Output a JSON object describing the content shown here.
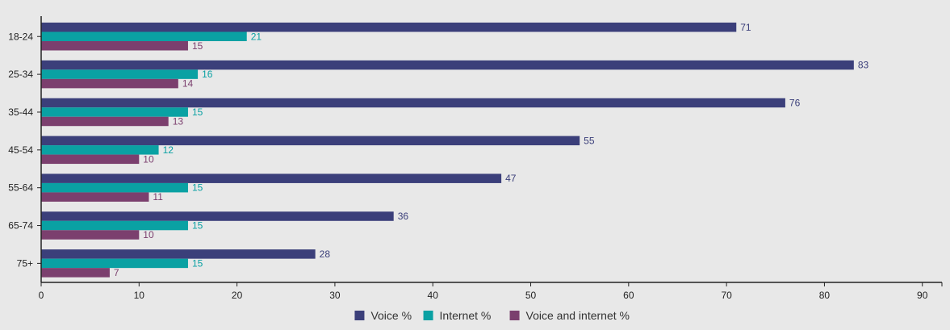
{
  "chart_data": {
    "type": "bar",
    "orientation": "horizontal",
    "categories": [
      "18-24",
      "25-34",
      "35-44",
      "45-54",
      "55-64",
      "65-74",
      "75+"
    ],
    "series": [
      {
        "name": "Voice %",
        "color": "#3b3f7a",
        "values": [
          71,
          83,
          76,
          55,
          47,
          36,
          28
        ]
      },
      {
        "name": "Internet %",
        "color": "#0aa1a3",
        "values": [
          21,
          16,
          15,
          12,
          15,
          15,
          15
        ]
      },
      {
        "name": "Voice and internet %",
        "color": "#7b3f6e",
        "values": [
          15,
          14,
          13,
          10,
          11,
          10,
          7
        ]
      }
    ],
    "xlim": [
      0,
      92
    ],
    "x_ticks": [
      0,
      10,
      20,
      30,
      40,
      50,
      60,
      70,
      80,
      90
    ],
    "grid": false,
    "legend_position": "bottom-center",
    "title": "",
    "xlabel": "",
    "ylabel": ""
  }
}
